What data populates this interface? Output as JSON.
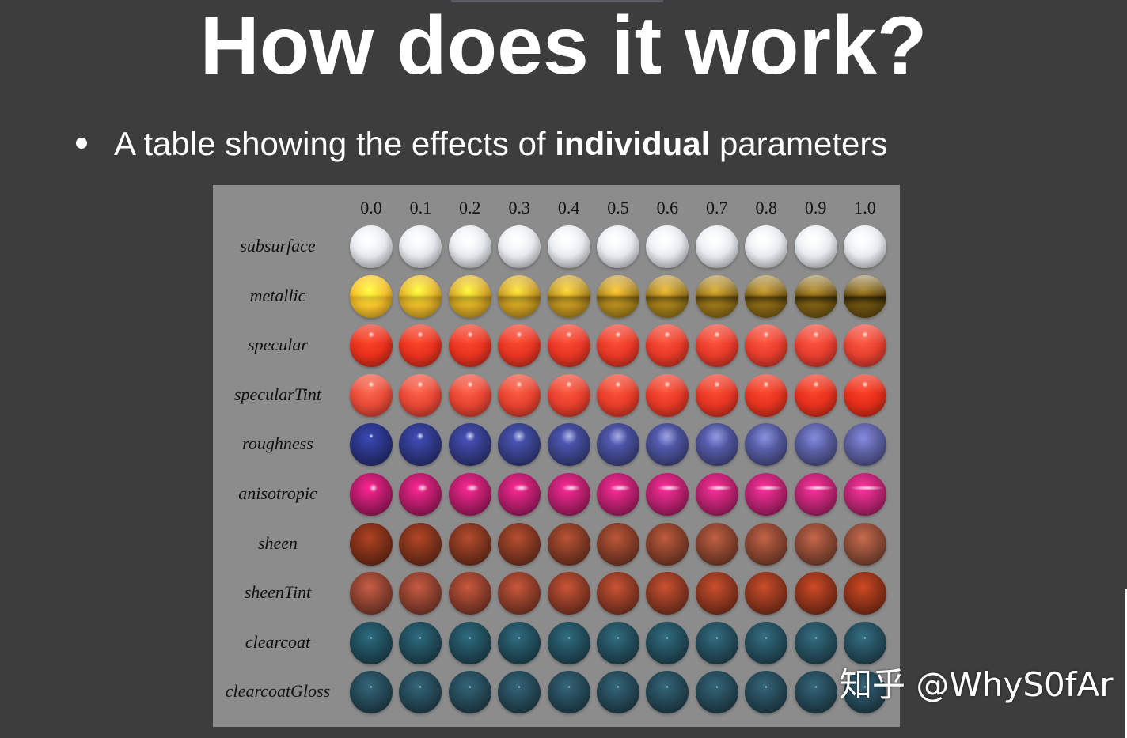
{
  "slide": {
    "title": "How does it work?",
    "bullet": {
      "prefix": "A table showing the effects of ",
      "bold": "individual",
      "suffix": " parameters"
    }
  },
  "table": {
    "columns": [
      "0.0",
      "0.1",
      "0.2",
      "0.3",
      "0.4",
      "0.5",
      "0.6",
      "0.7",
      "0.8",
      "0.9",
      "1.0"
    ],
    "rows": [
      {
        "label": "subsurface",
        "color0": "#e4e8ec",
        "color1": "#e6eaee",
        "spec": "soft"
      },
      {
        "label": "metallic",
        "color0": "#f5c02a",
        "color1": "#6b5010",
        "spec": "mirror"
      },
      {
        "label": "specular",
        "color0": "#e8301c",
        "color1": "#e84030",
        "spec": "sharp"
      },
      {
        "label": "specularTint",
        "color0": "#e84a38",
        "color1": "#e52e1a",
        "spec": "sharp"
      },
      {
        "label": "roughness",
        "color0": "#28327e",
        "color1": "#585c9a",
        "spec": "rough"
      },
      {
        "label": "anisotropic",
        "color0": "#b01a66",
        "color1": "#b82470",
        "spec": "aniso"
      },
      {
        "label": "sheen",
        "color0": "#7a2e18",
        "color1": "#8a4a36",
        "spec": "none"
      },
      {
        "label": "sheenTint",
        "color0": "#8a4030",
        "color1": "#8e3218",
        "spec": "none"
      },
      {
        "label": "clearcoat",
        "color0": "#1f4a58",
        "color1": "#244c5a",
        "spec": "dot"
      },
      {
        "label": "clearcoatGloss",
        "color0": "#244654",
        "color1": "#244654",
        "spec": "dot"
      }
    ]
  },
  "watermark": "知乎 @WhyS0fAr"
}
